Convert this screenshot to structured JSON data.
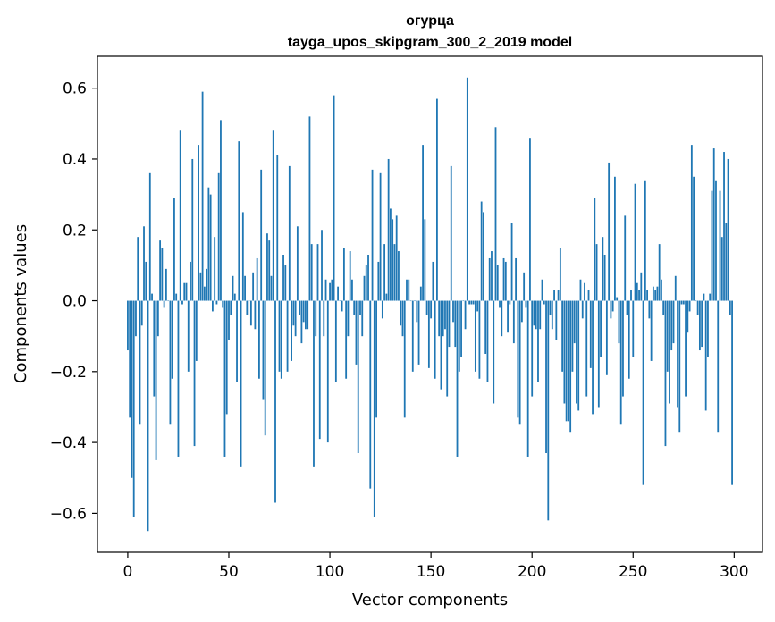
{
  "chart_data": {
    "type": "bar",
    "title_line1": "огурца",
    "title_line2": "tayga_upos_skipgram_300_2_2019 model",
    "xlabel": "Vector components",
    "ylabel": "Components values",
    "xlim": [
      -15,
      314
    ],
    "ylim": [
      -0.71,
      0.69
    ],
    "xticks": [
      0,
      50,
      100,
      150,
      200,
      250,
      300
    ],
    "xtick_labels": [
      "0",
      "50",
      "100",
      "150",
      "200",
      "250",
      "300"
    ],
    "yticks": [
      -0.6,
      -0.4,
      -0.2,
      0.0,
      0.2,
      0.4,
      0.6
    ],
    "ytick_labels": [
      "−0.6",
      "−0.4",
      "−0.2",
      "0.0",
      "0.2",
      "0.4",
      "0.6"
    ],
    "bar_color": "#1f77b4",
    "values": [
      -0.14,
      -0.33,
      -0.5,
      -0.61,
      -0.1,
      0.18,
      -0.35,
      -0.07,
      0.21,
      0.11,
      -0.65,
      0.36,
      0.02,
      -0.27,
      -0.45,
      -0.1,
      0.17,
      0.15,
      -0.02,
      0.09,
      0.0,
      -0.35,
      -0.22,
      0.29,
      0.02,
      -0.44,
      0.48,
      -0.01,
      0.05,
      0.05,
      -0.2,
      0.11,
      0.4,
      -0.41,
      -0.17,
      0.44,
      0.08,
      0.59,
      0.04,
      0.09,
      0.32,
      0.3,
      -0.03,
      0.18,
      -0.01,
      0.36,
      0.51,
      -0.02,
      -0.44,
      -0.32,
      -0.11,
      -0.04,
      0.07,
      0.02,
      -0.23,
      0.45,
      -0.47,
      0.25,
      0.07,
      -0.04,
      0.0,
      -0.07,
      0.08,
      -0.08,
      0.12,
      -0.22,
      0.37,
      -0.28,
      -0.38,
      0.19,
      0.17,
      0.07,
      0.48,
      -0.57,
      0.41,
      -0.2,
      -0.22,
      0.13,
      0.1,
      -0.2,
      0.38,
      -0.17,
      -0.07,
      -0.1,
      0.21,
      -0.04,
      -0.12,
      -0.06,
      -0.08,
      -0.08,
      0.52,
      0.16,
      -0.47,
      -0.1,
      0.16,
      -0.39,
      0.2,
      -0.1,
      0.06,
      -0.4,
      0.05,
      0.06,
      0.58,
      -0.23,
      0.04,
      0.0,
      -0.03,
      0.15,
      -0.22,
      -0.1,
      0.14,
      0.06,
      -0.04,
      -0.18,
      -0.43,
      -0.04,
      -0.1,
      0.07,
      0.1,
      0.13,
      -0.53,
      0.37,
      -0.61,
      -0.33,
      0.11,
      0.36,
      -0.05,
      0.16,
      0.02,
      0.4,
      0.26,
      0.23,
      0.16,
      0.24,
      0.14,
      -0.07,
      -0.1,
      -0.33,
      0.06,
      0.06,
      0.0,
      -0.2,
      0.0,
      -0.06,
      -0.18,
      0.04,
      0.44,
      0.23,
      -0.04,
      -0.19,
      -0.05,
      0.11,
      -0.22,
      0.57,
      -0.1,
      -0.25,
      -0.1,
      -0.08,
      -0.27,
      -0.13,
      0.38,
      -0.06,
      -0.13,
      -0.44,
      -0.2,
      -0.16,
      0.0,
      -0.08,
      0.63,
      -0.01,
      -0.01,
      -0.01,
      -0.2,
      -0.03,
      -0.22,
      0.28,
      0.25,
      -0.15,
      -0.23,
      0.12,
      0.14,
      -0.29,
      0.49,
      0.1,
      -0.02,
      -0.1,
      0.12,
      0.11,
      -0.09,
      -0.01,
      0.22,
      -0.12,
      0.12,
      -0.33,
      -0.35,
      -0.06,
      0.08,
      -0.02,
      -0.44,
      0.46,
      -0.27,
      -0.07,
      -0.08,
      -0.23,
      -0.08,
      0.06,
      -0.01,
      -0.43,
      -0.62,
      -0.04,
      -0.08,
      0.03,
      -0.11,
      0.03,
      0.15,
      -0.2,
      -0.29,
      -0.34,
      -0.34,
      -0.37,
      -0.2,
      -0.12,
      -0.29,
      -0.31,
      0.06,
      -0.05,
      0.05,
      -0.27,
      0.03,
      -0.19,
      -0.32,
      0.29,
      0.16,
      -0.3,
      -0.16,
      0.18,
      0.13,
      -0.21,
      0.39,
      -0.05,
      -0.03,
      0.35,
      0.01,
      -0.12,
      -0.35,
      -0.27,
      0.24,
      -0.04,
      -0.22,
      0.03,
      -0.16,
      0.33,
      0.05,
      0.03,
      0.08,
      -0.52,
      0.34,
      0.03,
      -0.05,
      -0.17,
      0.04,
      0.03,
      0.04,
      0.16,
      0.06,
      -0.04,
      -0.41,
      -0.2,
      -0.29,
      -0.14,
      -0.12,
      0.07,
      -0.3,
      -0.37,
      -0.01,
      -0.01,
      -0.27,
      -0.09,
      -0.03,
      0.44,
      0.35,
      0.0,
      -0.04,
      -0.14,
      -0.13,
      0.02,
      -0.31,
      -0.16,
      0.02,
      0.31,
      0.43,
      0.34,
      -0.37,
      0.31,
      0.18,
      0.42,
      0.22,
      0.4,
      -0.04,
      -0.52
    ]
  }
}
